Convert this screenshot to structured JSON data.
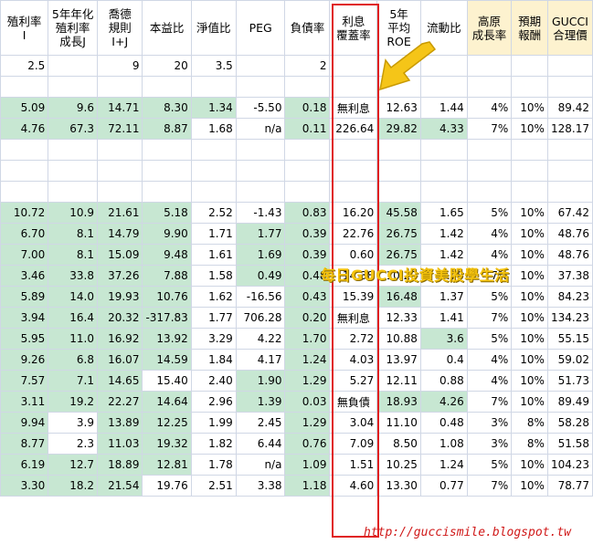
{
  "headers": [
    {
      "lines": [
        "殖利率",
        "I"
      ]
    },
    {
      "lines": [
        "5年年化",
        "殖利率",
        "成長J"
      ]
    },
    {
      "lines": [
        "喬德",
        "規則",
        "I+J"
      ]
    },
    {
      "lines": [
        "本益比"
      ]
    },
    {
      "lines": [
        "淨值比"
      ]
    },
    {
      "lines": [
        "PEG"
      ]
    },
    {
      "lines": [
        "負債率"
      ]
    },
    {
      "lines": [
        "利息",
        "覆蓋率"
      ]
    },
    {
      "lines": [
        "5年",
        "平均",
        "ROE"
      ]
    },
    {
      "lines": [
        "流動比"
      ]
    },
    {
      "lines": [
        "高原",
        "成長率"
      ],
      "hl": true
    },
    {
      "lines": [
        "預期",
        "報酬"
      ],
      "hl": true
    },
    {
      "lines": [
        "GUCCI",
        "合理價"
      ],
      "hl": true
    }
  ],
  "criteria_row": [
    "2.5",
    "",
    "9",
    "20",
    "3.5",
    "",
    "2",
    "",
    "",
    "",
    "",
    "",
    ""
  ],
  "group1": [
    {
      "cells": [
        "5.09",
        "9.6",
        "14.71",
        "8.30",
        "1.34",
        "-5.50",
        "0.18",
        "無利息",
        "12.63",
        "1.44",
        "4%",
        "10%",
        "89.42"
      ],
      "green": [
        0,
        1,
        2,
        3,
        4,
        6
      ]
    },
    {
      "cells": [
        "4.76",
        "67.3",
        "72.11",
        "8.87",
        "1.68",
        "n/a",
        "0.11",
        "226.64",
        "29.82",
        "4.33",
        "7%",
        "10%",
        "128.17"
      ],
      "green": [
        0,
        1,
        2,
        3,
        6,
        8,
        9
      ]
    }
  ],
  "group2": [
    {
      "cells": [
        "10.72",
        "10.9",
        "21.61",
        "5.18",
        "2.52",
        "-1.43",
        "0.83",
        "16.20",
        "45.58",
        "1.65",
        "5%",
        "10%",
        "67.42"
      ],
      "green": [
        0,
        1,
        2,
        3,
        6,
        8
      ]
    },
    {
      "cells": [
        "6.70",
        "8.1",
        "14.79",
        "9.90",
        "1.71",
        "1.77",
        "0.39",
        "22.76",
        "26.75",
        "1.42",
        "4%",
        "10%",
        "48.76"
      ],
      "green": [
        0,
        1,
        2,
        3,
        5,
        6,
        8
      ]
    },
    {
      "cells": [
        "7.00",
        "8.1",
        "15.09",
        "9.48",
        "1.61",
        "1.69",
        "0.39",
        "0.60",
        "26.75",
        "1.42",
        "4%",
        "10%",
        "48.76"
      ],
      "green": [
        0,
        1,
        2,
        3,
        5,
        6,
        8
      ]
    },
    {
      "cells": [
        "3.46",
        "33.8",
        "37.26",
        "7.88",
        "1.58",
        "0.49",
        "0.48",
        "14.38",
        "10.29",
        "0.78",
        "7%",
        "10%",
        "37.38"
      ],
      "green": [
        0,
        1,
        2,
        3,
        5,
        6
      ]
    },
    {
      "cells": [
        "5.89",
        "14.0",
        "19.93",
        "10.76",
        "1.62",
        "-16.56",
        "0.43",
        "15.39",
        "16.48",
        "1.37",
        "5%",
        "10%",
        "84.23"
      ],
      "green": [
        0,
        1,
        2,
        3,
        6,
        8
      ]
    },
    {
      "cells": [
        "3.94",
        "16.4",
        "20.32",
        "-317.83",
        "1.77",
        "706.28",
        "0.20",
        "無利息",
        "12.33",
        "1.41",
        "7%",
        "10%",
        "134.23"
      ],
      "green": [
        0,
        1,
        2,
        3,
        6
      ]
    },
    {
      "cells": [
        "5.95",
        "11.0",
        "16.92",
        "13.92",
        "3.29",
        "4.22",
        "1.70",
        "2.72",
        "10.88",
        "3.6",
        "5%",
        "10%",
        "55.15"
      ],
      "green": [
        0,
        1,
        2,
        3,
        6,
        9
      ]
    },
    {
      "cells": [
        "9.26",
        "6.8",
        "16.07",
        "14.59",
        "1.84",
        "4.17",
        "1.24",
        "4.03",
        "13.97",
        "0.4",
        "4%",
        "10%",
        "59.02"
      ],
      "green": [
        0,
        1,
        2,
        3,
        6
      ]
    },
    {
      "cells": [
        "7.57",
        "7.1",
        "14.65",
        "15.40",
        "2.40",
        "1.90",
        "1.29",
        "5.27",
        "12.11",
        "0.88",
        "4%",
        "10%",
        "51.73"
      ],
      "green": [
        0,
        1,
        2,
        5,
        6
      ]
    },
    {
      "cells": [
        "3.11",
        "19.2",
        "22.27",
        "14.64",
        "2.96",
        "1.39",
        "0.03",
        "無負債",
        "18.93",
        "4.26",
        "7%",
        "10%",
        "89.49"
      ],
      "green": [
        0,
        1,
        2,
        3,
        5,
        6,
        8,
        9
      ]
    },
    {
      "cells": [
        "9.94",
        "3.9",
        "13.89",
        "12.25",
        "1.99",
        "2.45",
        "1.29",
        "3.04",
        "11.10",
        "0.48",
        "3%",
        "8%",
        "58.28"
      ],
      "green": [
        0,
        2,
        3,
        6
      ]
    },
    {
      "cells": [
        "8.77",
        "2.3",
        "11.03",
        "19.32",
        "1.82",
        "6.44",
        "0.76",
        "7.09",
        "8.50",
        "1.08",
        "3%",
        "8%",
        "51.58"
      ],
      "green": [
        0,
        2,
        3,
        6
      ]
    },
    {
      "cells": [
        "6.19",
        "12.7",
        "18.89",
        "12.81",
        "1.78",
        "n/a",
        "1.09",
        "1.51",
        "10.25",
        "1.24",
        "5%",
        "10%",
        "104.23"
      ],
      "green": [
        0,
        1,
        2,
        3,
        6
      ]
    },
    {
      "cells": [
        "3.30",
        "18.2",
        "21.54",
        "19.76",
        "2.51",
        "3.38",
        "1.18",
        "4.60",
        "13.30",
        "0.77",
        "7%",
        "10%",
        "78.77"
      ],
      "green": [
        0,
        1,
        2,
        6
      ]
    }
  ],
  "overlay": {
    "watermark": "每日GUCCI投資美股學生活",
    "url": "http://guccismile.blogspot.tw",
    "highlight_color": "#e02020",
    "arrow_color": "#f5c518",
    "arrow_icon": "arrow-pointing-down-left"
  }
}
